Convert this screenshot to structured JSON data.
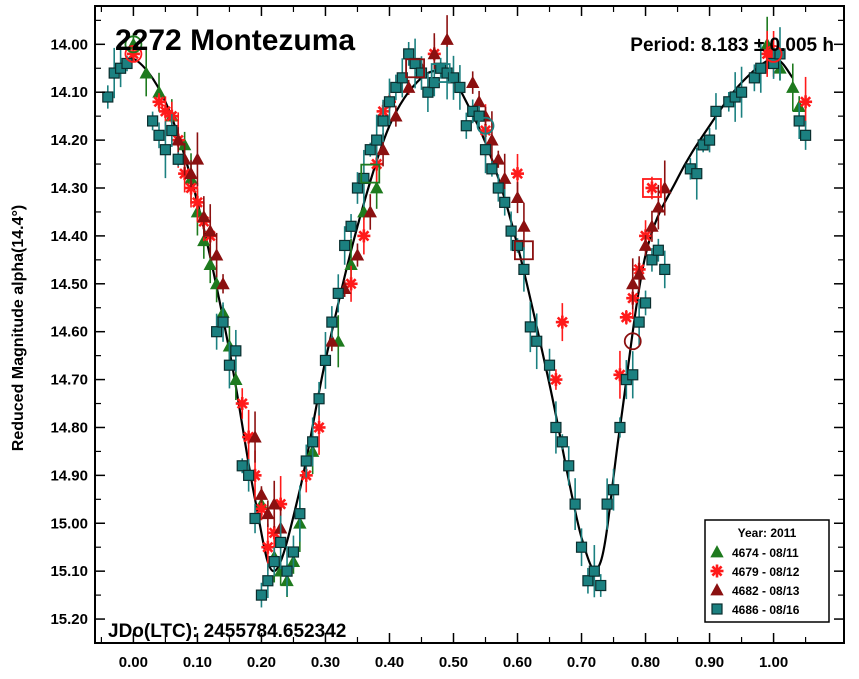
{
  "chart_data": {
    "type": "scatter",
    "title": "2272 Montezuma",
    "period_label": "Period: 8.183 ± 0.005 h",
    "epoch_label": "JDo(LTC): 2455784.652342",
    "ylabel": "Reduced Magnitude alpha(14.4°)",
    "xlabel": "",
    "xlim": [
      -0.06,
      1.11
    ],
    "ylim": [
      15.25,
      13.92
    ],
    "y_inverted": true,
    "x_ticks": [
      "0.00",
      "0.10",
      "0.20",
      "0.30",
      "0.40",
      "0.50",
      "0.60",
      "0.70",
      "0.80",
      "0.90",
      "1.00"
    ],
    "y_ticks": [
      "14.00",
      "14.10",
      "14.20",
      "14.30",
      "14.40",
      "14.50",
      "14.60",
      "14.70",
      "14.80",
      "14.90",
      "15.00",
      "15.10",
      "15.20"
    ],
    "grid": false,
    "legend": {
      "title": "Year: 2011",
      "position": "bottom-right",
      "entries": [
        "4674 - 08/11",
        "4679 - 08/12",
        "4682 - 08/13",
        "4686 - 08/16"
      ]
    },
    "fit_curve": {
      "x": [
        -0.03,
        0.0,
        0.05,
        0.1,
        0.15,
        0.19,
        0.22,
        0.26,
        0.3,
        0.35,
        0.4,
        0.45,
        0.49,
        0.52,
        0.56,
        0.6,
        0.65,
        0.7,
        0.73,
        0.76,
        0.8,
        0.85,
        0.9,
        0.95,
        1.0,
        1.03
      ],
      "y": [
        14.07,
        14.03,
        14.12,
        14.33,
        14.64,
        14.95,
        15.1,
        14.93,
        14.66,
        14.38,
        14.17,
        14.07,
        14.06,
        14.12,
        14.24,
        14.42,
        14.71,
        15.03,
        15.08,
        14.8,
        14.44,
        14.28,
        14.17,
        14.08,
        14.03,
        14.07
      ]
    },
    "series": [
      {
        "name": "4674 - 08/11",
        "marker": "triangle",
        "color": "#1e7a1e",
        "x": [
          0.0,
          0.02,
          0.04,
          0.06,
          0.08,
          0.09,
          0.1,
          0.11,
          0.12,
          0.13,
          0.14,
          0.15,
          0.16,
          0.2,
          0.22,
          0.23,
          0.24,
          0.25,
          0.26,
          0.28,
          0.32,
          0.34,
          0.36,
          0.38,
          0.99,
          1.01,
          1.03,
          1.04
        ],
        "y": [
          14.0,
          14.06,
          14.1,
          14.15,
          14.21,
          14.28,
          14.35,
          14.41,
          14.46,
          14.5,
          14.56,
          14.63,
          14.7,
          14.96,
          15.07,
          15.1,
          15.12,
          15.08,
          15.0,
          14.85,
          14.62,
          14.46,
          14.35,
          14.3,
          14.0,
          14.05,
          14.09,
          14.13
        ]
      },
      {
        "name": "4679 - 08/12",
        "marker": "asterisk",
        "color": "#ff1a1a",
        "x": [
          0.0,
          0.04,
          0.05,
          0.06,
          0.07,
          0.08,
          0.09,
          0.1,
          0.11,
          0.12,
          0.17,
          0.18,
          0.19,
          0.2,
          0.21,
          0.22,
          0.23,
          0.27,
          0.29,
          0.34,
          0.36,
          0.38,
          0.39,
          0.4,
          0.47,
          0.55,
          0.6,
          0.66,
          0.67,
          0.76,
          0.77,
          0.78,
          0.79,
          0.8,
          0.81,
          0.99,
          1.0,
          1.05
        ],
        "y": [
          14.02,
          14.12,
          14.14,
          14.15,
          14.2,
          14.27,
          14.3,
          14.33,
          14.37,
          14.4,
          14.75,
          14.82,
          14.9,
          14.97,
          15.05,
          15.02,
          14.96,
          14.9,
          14.8,
          14.5,
          14.4,
          14.25,
          14.14,
          14.12,
          14.02,
          14.18,
          14.27,
          14.7,
          14.58,
          14.69,
          14.57,
          14.53,
          14.47,
          14.4,
          14.3,
          14.02,
          14.02,
          14.12
        ]
      },
      {
        "name": "4682 - 08/13",
        "marker": "triangle",
        "color": "#8b1010",
        "x": [
          0.07,
          0.08,
          0.09,
          0.1,
          0.11,
          0.12,
          0.13,
          0.14,
          0.19,
          0.2,
          0.21,
          0.22,
          0.23,
          0.31,
          0.33,
          0.35,
          0.37,
          0.39,
          0.41,
          0.43,
          0.45,
          0.47,
          0.49,
          0.53,
          0.54,
          0.55,
          0.56,
          0.57,
          0.58,
          0.6,
          0.61,
          0.78,
          0.79,
          0.8,
          0.81,
          0.82,
          0.83
        ],
        "y": [
          14.2,
          14.24,
          14.27,
          14.24,
          14.36,
          14.39,
          14.44,
          14.5,
          14.82,
          14.94,
          14.98,
          14.96,
          15.01,
          14.62,
          14.51,
          14.44,
          14.35,
          14.22,
          14.15,
          14.09,
          14.05,
          14.02,
          13.99,
          14.08,
          14.12,
          14.15,
          14.2,
          14.24,
          14.28,
          14.32,
          14.38,
          14.5,
          14.48,
          14.42,
          14.38,
          14.34,
          14.3
        ]
      },
      {
        "name": "4686 - 08/16",
        "marker": "square",
        "color": "#1b8080",
        "x": [
          -0.04,
          -0.03,
          -0.02,
          -0.01,
          0.03,
          0.04,
          0.05,
          0.06,
          0.07,
          0.13,
          0.14,
          0.15,
          0.16,
          0.17,
          0.18,
          0.19,
          0.2,
          0.21,
          0.22,
          0.23,
          0.24,
          0.25,
          0.26,
          0.27,
          0.28,
          0.29,
          0.3,
          0.31,
          0.32,
          0.33,
          0.34,
          0.35,
          0.36,
          0.37,
          0.38,
          0.39,
          0.4,
          0.41,
          0.42,
          0.43,
          0.44,
          0.45,
          0.46,
          0.47,
          0.48,
          0.49,
          0.5,
          0.51,
          0.52,
          0.53,
          0.54,
          0.55,
          0.56,
          0.57,
          0.58,
          0.59,
          0.6,
          0.61,
          0.62,
          0.63,
          0.65,
          0.66,
          0.67,
          0.68,
          0.69,
          0.7,
          0.71,
          0.72,
          0.73,
          0.74,
          0.75,
          0.76,
          0.77,
          0.78,
          0.79,
          0.8,
          0.81,
          0.82,
          0.83,
          0.87,
          0.88,
          0.89,
          0.9,
          0.91,
          0.93,
          0.94,
          0.95,
          0.97,
          0.98,
          1.0,
          1.01,
          1.04,
          1.05
        ],
        "y": [
          14.11,
          14.06,
          14.05,
          14.04,
          14.16,
          14.19,
          14.22,
          14.18,
          14.24,
          14.6,
          14.58,
          14.67,
          14.64,
          14.88,
          14.9,
          14.99,
          15.15,
          15.12,
          15.08,
          15.04,
          15.1,
          15.06,
          14.98,
          14.87,
          14.83,
          14.74,
          14.66,
          14.58,
          14.52,
          14.42,
          14.38,
          14.3,
          14.28,
          14.22,
          14.2,
          14.16,
          14.12,
          14.09,
          14.07,
          14.02,
          14.04,
          14.06,
          14.1,
          14.08,
          14.05,
          14.06,
          14.07,
          14.09,
          14.17,
          14.14,
          14.15,
          14.22,
          14.26,
          14.3,
          14.33,
          14.39,
          14.42,
          14.47,
          14.59,
          14.62,
          14.67,
          14.8,
          14.83,
          14.88,
          14.96,
          15.05,
          15.12,
          15.1,
          15.13,
          14.96,
          14.93,
          14.8,
          14.7,
          14.69,
          14.58,
          14.54,
          14.45,
          14.43,
          14.47,
          14.26,
          14.27,
          14.21,
          14.2,
          14.14,
          14.12,
          14.11,
          14.1,
          14.07,
          14.05,
          14.04,
          14.02,
          14.16,
          14.19
        ]
      }
    ],
    "highlight_markers": [
      {
        "shape": "circle",
        "color": "#1e7a1e",
        "x": 0.0,
        "y": 14.0
      },
      {
        "shape": "circle",
        "color": "#ff1a1a",
        "x": 0.0,
        "y": 14.02
      },
      {
        "shape": "circle",
        "color": "#ff1a1a",
        "x": 1.0,
        "y": 14.02
      },
      {
        "shape": "circle",
        "color": "#8b1010",
        "x": 0.78,
        "y": 14.62
      },
      {
        "shape": "circle",
        "color": "#1b8080",
        "x": 0.55,
        "y": 14.17
      },
      {
        "shape": "square",
        "color": "#1e7a1e",
        "x": 0.37,
        "y": 14.27
      },
      {
        "shape": "square",
        "color": "#1b8080",
        "x": 0.48,
        "y": 14.06
      },
      {
        "shape": "square",
        "color": "#8b1010",
        "x": 0.44,
        "y": 14.05
      },
      {
        "shape": "square",
        "color": "#8b1010",
        "x": 0.61,
        "y": 14.43
      },
      {
        "shape": "square",
        "color": "#ff1a1a",
        "x": 0.81,
        "y": 14.3
      }
    ]
  }
}
